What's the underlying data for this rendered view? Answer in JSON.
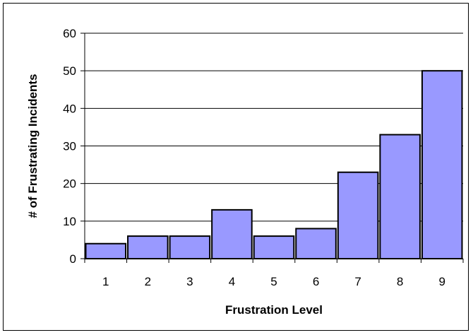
{
  "chart_data": {
    "type": "bar",
    "categories": [
      "1",
      "2",
      "3",
      "4",
      "5",
      "6",
      "7",
      "8",
      "9"
    ],
    "values": [
      4,
      6,
      6,
      13,
      6,
      8,
      23,
      33,
      50
    ],
    "title": "",
    "xlabel": "Frustration Level",
    "ylabel": "# of Frustrating Incidents",
    "ylim": [
      0,
      60
    ],
    "yticks": [
      "0",
      "10",
      "20",
      "30",
      "40",
      "50",
      "60"
    ],
    "grid": true,
    "legend": "none",
    "bar_color": "#9999ff"
  }
}
